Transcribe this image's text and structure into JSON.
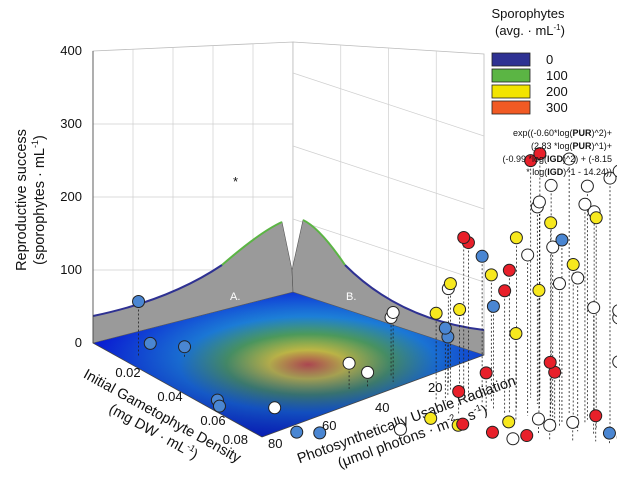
{
  "chart_data": {
    "type": "scatter",
    "title": "",
    "zlabel_line1": "Reproductive success",
    "zlabel_line2": "(sporophytes · mL",
    "zlabel_line2_sup": "-1",
    "zlabel_line2_end": ")",
    "xlabel_line1": "Initial Gametophyte Density",
    "xlabel_line2": "(mg DW · mL",
    "xlabel_line2_sup": "-1",
    "xlabel_line2_end": ")",
    "ylabel_line1": "Photosynthetically Usable Radiation",
    "ylabel_line2": "(μmol photons · m",
    "ylabel_line2_sup1": "-2",
    "ylabel_line2_mid": " · s",
    "ylabel_line2_sup2": "-1",
    "ylabel_line2_end": ")",
    "z_ticks": [
      "0",
      "100",
      "200",
      "300",
      "400"
    ],
    "x_ticks": [
      "0.02",
      "0.04",
      "0.06",
      "0.08"
    ],
    "y_ticks": [
      "0",
      "20",
      "40",
      "60",
      "80"
    ],
    "zlim": [
      0,
      400
    ],
    "xlim": [
      0.01,
      0.085
    ],
    "ylim": [
      0,
      85
    ],
    "surface_labels": [
      "A.",
      "B."
    ],
    "asterisk": "*",
    "legend": {
      "title_line1": "Sporophytes",
      "title_line2": "(avg. · mL",
      "title_line2_sup": "-1",
      "title_line2_end": ")",
      "entries": [
        {
          "label": "0",
          "color": "#2e3192"
        },
        {
          "label": "100",
          "color": "#5bb544"
        },
        {
          "label": "200",
          "color": "#f2e400"
        },
        {
          "label": "300",
          "color": "#f15a24"
        }
      ],
      "placement": "top-right"
    },
    "equation": [
      [
        {
          "t": "exp((-0.60*log("
        },
        {
          "t": "PUR",
          "b": true
        },
        {
          "t": ")^2)+"
        }
      ],
      [
        {
          "t": "(2.83 *log("
        },
        {
          "t": "PUR",
          "b": true
        },
        {
          "t": ")^1)+"
        }
      ],
      [
        {
          "t": "(-0.99 *log("
        },
        {
          "t": "IGD",
          "b": true
        },
        {
          "t": ")^2) + (-8.15"
        }
      ],
      [
        {
          "t": "* log("
        },
        {
          "t": "IGD",
          "b": true
        },
        {
          "t": ")^1 - 14.24))"
        }
      ]
    ],
    "point_colors": {
      "white": "#ffffff",
      "yellow": "#f7e81e",
      "red": "#e8202a",
      "blue": "#4a86d2"
    },
    "points": [
      {
        "x": 0.02,
        "y": 80,
        "z": 75,
        "c": "blue"
      },
      {
        "x": 0.015,
        "y": 75,
        "z": 10,
        "c": "blue"
      },
      {
        "x": 0.02,
        "y": 70,
        "z": 15,
        "c": "blue"
      },
      {
        "x": 0.055,
        "y": 80,
        "z": 0,
        "c": "blue"
      },
      {
        "x": 0.06,
        "y": 82,
        "z": 0,
        "c": "blue"
      },
      {
        "x": 0.08,
        "y": 70,
        "z": 0,
        "c": "blue"
      },
      {
        "x": 0.08,
        "y": 75,
        "z": 0,
        "c": "blue"
      },
      {
        "x": 0.04,
        "y": 40,
        "z": 20,
        "c": "white"
      },
      {
        "x": 0.042,
        "y": 45,
        "z": 35,
        "c": "white"
      },
      {
        "x": 0.06,
        "y": 70,
        "z": 0,
        "c": "white"
      },
      {
        "x": 0.03,
        "y": 30,
        "z": 80,
        "c": "white"
      },
      {
        "x": 0.035,
        "y": 32,
        "z": 95,
        "c": "white"
      },
      {
        "x": 0.04,
        "y": 20,
        "z": 110,
        "c": "yellow"
      },
      {
        "x": 0.035,
        "y": 20,
        "z": 130,
        "c": "white"
      },
      {
        "x": 0.04,
        "y": 22,
        "z": 145,
        "c": "yellow"
      },
      {
        "x": 0.045,
        "y": 25,
        "z": 80,
        "c": "blue"
      },
      {
        "x": 0.05,
        "y": 20,
        "z": 200,
        "c": "blue"
      },
      {
        "x": 0.05,
        "y": 18,
        "z": 175,
        "c": "yellow"
      },
      {
        "x": 0.048,
        "y": 22,
        "z": 215,
        "c": "red"
      },
      {
        "x": 0.05,
        "y": 24,
        "z": 225,
        "c": "red"
      },
      {
        "x": 0.055,
        "y": 20,
        "z": 140,
        "c": "blue"
      },
      {
        "x": 0.05,
        "y": 30,
        "z": 120,
        "c": "yellow"
      },
      {
        "x": 0.05,
        "y": 28,
        "z": 100,
        "c": "blue"
      },
      {
        "x": 0.045,
        "y": 5,
        "z": 335,
        "c": "red"
      },
      {
        "x": 0.045,
        "y": 7,
        "z": 325,
        "c": "red"
      },
      {
        "x": 0.05,
        "y": 5,
        "z": 300,
        "c": "white"
      },
      {
        "x": 0.055,
        "y": 10,
        "z": 285,
        "c": "white"
      },
      {
        "x": 0.05,
        "y": 8,
        "z": 270,
        "c": "white"
      },
      {
        "x": 0.06,
        "y": 10,
        "z": 265,
        "c": "yellow"
      },
      {
        "x": 0.055,
        "y": 15,
        "z": 235,
        "c": "yellow"
      },
      {
        "x": 0.06,
        "y": 15,
        "z": 220,
        "c": "white"
      },
      {
        "x": 0.058,
        "y": 18,
        "z": 195,
        "c": "red"
      },
      {
        "x": 0.06,
        "y": 20,
        "z": 170,
        "c": "red"
      },
      {
        "x": 0.058,
        "y": 5,
        "z": 350,
        "c": "white"
      },
      {
        "x": 0.062,
        "y": 3,
        "z": 320,
        "c": "white"
      },
      {
        "x": 0.065,
        "y": 5,
        "z": 300,
        "c": "white"
      },
      {
        "x": 0.065,
        "y": 3,
        "z": 290,
        "c": "white"
      },
      {
        "x": 0.07,
        "y": 0,
        "z": 355,
        "c": "white"
      },
      {
        "x": 0.07,
        "y": 2,
        "z": 345,
        "c": "white"
      },
      {
        "x": 0.072,
        "y": 0,
        "z": 320,
        "c": "white"
      },
      {
        "x": 0.07,
        "y": 5,
        "z": 290,
        "c": "yellow"
      },
      {
        "x": 0.065,
        "y": 10,
        "z": 250,
        "c": "blue"
      },
      {
        "x": 0.065,
        "y": 12,
        "z": 240,
        "c": "white"
      },
      {
        "x": 0.07,
        "y": 10,
        "z": 225,
        "c": "yellow"
      },
      {
        "x": 0.072,
        "y": 10,
        "z": 210,
        "c": "white"
      },
      {
        "x": 0.068,
        "y": 12,
        "z": 195,
        "c": "white"
      },
      {
        "x": 0.065,
        "y": 15,
        "z": 180,
        "c": "yellow"
      },
      {
        "x": 0.075,
        "y": 8,
        "z": 175,
        "c": "white"
      },
      {
        "x": 0.08,
        "y": 5,
        "z": 180,
        "c": "white"
      },
      {
        "x": 0.08,
        "y": 5,
        "z": 170,
        "c": "white"
      },
      {
        "x": 0.08,
        "y": 3,
        "z": 130,
        "c": "white"
      },
      {
        "x": 0.08,
        "y": 5,
        "z": 110,
        "c": "white"
      },
      {
        "x": 0.07,
        "y": 15,
        "z": 90,
        "c": "red"
      },
      {
        "x": 0.072,
        "y": 15,
        "z": 80,
        "c": "red"
      },
      {
        "x": 0.065,
        "y": 20,
        "z": 120,
        "c": "yellow"
      },
      {
        "x": 0.062,
        "y": 25,
        "z": 60,
        "c": "red"
      },
      {
        "x": 0.06,
        "y": 30,
        "z": 30,
        "c": "red"
      },
      {
        "x": 0.075,
        "y": 20,
        "z": 20,
        "c": "white"
      },
      {
        "x": 0.08,
        "y": 20,
        "z": 20,
        "c": "white"
      },
      {
        "x": 0.08,
        "y": 15,
        "z": 25,
        "c": "white"
      },
      {
        "x": 0.072,
        "y": 25,
        "z": 10,
        "c": "yellow"
      },
      {
        "x": 0.08,
        "y": 25,
        "z": 5,
        "c": "red"
      },
      {
        "x": 0.08,
        "y": 28,
        "z": 0,
        "c": "white"
      },
      {
        "x": 0.07,
        "y": 35,
        "z": 0,
        "c": "yellow"
      },
      {
        "x": 0.068,
        "y": 40,
        "z": 5,
        "c": "yellow"
      },
      {
        "x": 0.072,
        "y": 35,
        "z": 5,
        "c": "red"
      },
      {
        "x": 0.075,
        "y": 30,
        "z": 0,
        "c": "red"
      },
      {
        "x": 0.082,
        "y": 5,
        "z": 10,
        "c": "blue"
      },
      {
        "x": 0.082,
        "y": 8,
        "z": 15,
        "c": "blue"
      },
      {
        "x": 0.08,
        "y": 2,
        "z": 45,
        "c": "yellow"
      },
      {
        "x": 0.08,
        "y": 2,
        "z": 30,
        "c": "white"
      },
      {
        "x": 0.082,
        "y": 0,
        "z": 50,
        "c": "blue"
      },
      {
        "x": 0.08,
        "y": 10,
        "z": 35,
        "c": "red"
      },
      {
        "x": 0.075,
        "y": 50,
        "z": 0,
        "c": "white"
      }
    ]
  }
}
